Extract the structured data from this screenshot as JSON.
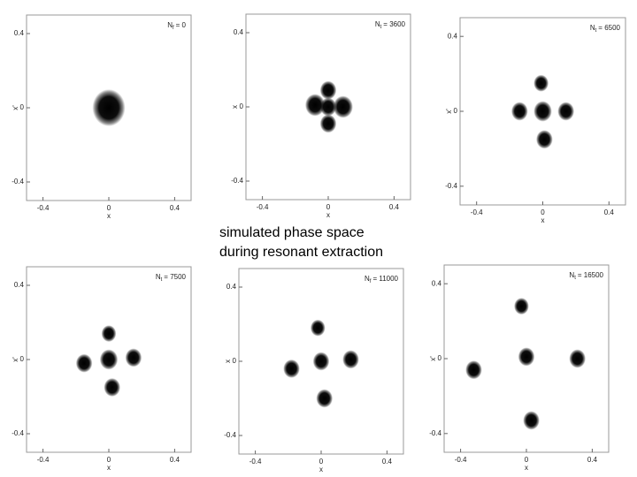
{
  "caption": [
    "simulated phase space",
    "during resonant extraction"
  ],
  "chart_data": [
    {
      "type": "scatter",
      "annotation": {
        "symbol": "N",
        "subscript": "f",
        "text": "= 0"
      },
      "xlabel": "x",
      "ylabel": "x'",
      "x": [
        0
      ],
      "y": [
        0
      ],
      "sizes": [
        0.1
      ],
      "xlim": [
        -0.5,
        0.5
      ],
      "ylim": [
        -0.5,
        0.5
      ],
      "xticks": [
        -0.4,
        0,
        0.4
      ],
      "yticks": [
        -0.4,
        0,
        0.4
      ]
    },
    {
      "type": "scatter",
      "annotation": {
        "symbol": "N",
        "subscript": "t",
        "text": "= 3600"
      },
      "xlabel": "x",
      "ylabel": "x",
      "x": [
        0,
        -0.08,
        0.09,
        0,
        0
      ],
      "y": [
        0,
        0.01,
        0,
        0.09,
        -0.09
      ],
      "sizes": [
        0.05,
        0.06,
        0.06,
        0.05,
        0.05
      ],
      "xlim": [
        -0.5,
        0.5
      ],
      "ylim": [
        -0.5,
        0.5
      ],
      "xticks": [
        -0.4,
        0,
        0.4
      ],
      "yticks": [
        -0.4,
        0,
        0.4
      ]
    },
    {
      "type": "scatter",
      "annotation": {
        "symbol": "N",
        "subscript": "t",
        "text": "= 6500"
      },
      "xlabel": "x",
      "ylabel": "x'",
      "x": [
        0,
        -0.01,
        0.01,
        -0.14,
        0.14
      ],
      "y": [
        0,
        0.15,
        -0.15,
        0,
        0
      ],
      "sizes": [
        0.055,
        0.045,
        0.05,
        0.05,
        0.05
      ],
      "xlim": [
        -0.5,
        0.5
      ],
      "ylim": [
        -0.5,
        0.5
      ],
      "xticks": [
        -0.4,
        0,
        0.4
      ],
      "yticks": [
        -0.4,
        0,
        0.4
      ]
    },
    {
      "type": "scatter",
      "annotation": {
        "symbol": "N",
        "subscript": "t",
        "text": "= 7500"
      },
      "xlabel": "x",
      "ylabel": "x'",
      "x": [
        0,
        0,
        0.02,
        -0.15,
        0.15
      ],
      "y": [
        0,
        0.14,
        -0.15,
        -0.02,
        0.01
      ],
      "sizes": [
        0.055,
        0.045,
        0.05,
        0.05,
        0.05
      ],
      "xlim": [
        -0.5,
        0.5
      ],
      "ylim": [
        -0.5,
        0.5
      ],
      "xticks": [
        -0.4,
        0,
        0.4
      ],
      "yticks": [
        -0.4,
        0,
        0.4
      ]
    },
    {
      "type": "scatter",
      "annotation": {
        "symbol": "N",
        "subscript": "f",
        "text": "= 11000"
      },
      "xlabel": "x",
      "ylabel": "x",
      "x": [
        0,
        -0.02,
        0.02,
        -0.18,
        0.18
      ],
      "y": [
        0,
        0.18,
        -0.2,
        -0.04,
        0.01
      ],
      "sizes": [
        0.05,
        0.045,
        0.05,
        0.05,
        0.05
      ],
      "xlim": [
        -0.5,
        0.5
      ],
      "ylim": [
        -0.5,
        0.5
      ],
      "xticks": [
        -0.4,
        0,
        0.4
      ],
      "yticks": [
        -0.4,
        0,
        0.4
      ]
    },
    {
      "type": "scatter",
      "annotation": {
        "symbol": "N",
        "subscript": "t",
        "text": "= 16500"
      },
      "xlabel": "x",
      "ylabel": "x'",
      "x": [
        0,
        -0.03,
        0.03,
        -0.32,
        0.31
      ],
      "y": [
        0.01,
        0.28,
        -0.33,
        -0.06,
        0
      ],
      "sizes": [
        0.05,
        0.045,
        0.05,
        0.05,
        0.05
      ],
      "xlim": [
        -0.5,
        0.5
      ],
      "ylim": [
        -0.5,
        0.5
      ],
      "xticks": [
        -0.4,
        0,
        0.4
      ],
      "yticks": [
        -0.4,
        0,
        0.4
      ]
    }
  ]
}
